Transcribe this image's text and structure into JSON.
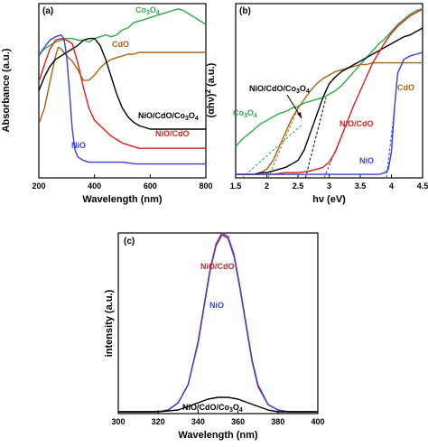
{
  "colors": {
    "Co3O4": "#2eaa4a",
    "CdO": "#a86412",
    "NiO/CdO/Co3O4": "#000000",
    "NiO/CdO": "#dd1e1e",
    "NiO": "#3a3fd8"
  },
  "chart_data": [
    {
      "id": "a",
      "panel_label": "(a)",
      "type": "line",
      "xlabel": "Wavelength (nm)",
      "ylabel": "Absorbance (a.u.)",
      "xlim": [
        200,
        800
      ],
      "xticks": [
        "200",
        "400",
        "600",
        "800"
      ],
      "y_ticks_labeled": false,
      "grid": false,
      "series_labels": [
        {
          "series": "Co3O4",
          "base": "Co",
          "sub1": "3",
          "mid": "O",
          "sub2": "4",
          "tail": ""
        },
        {
          "series": "CdO",
          "base": "CdO",
          "sub1": "",
          "mid": "",
          "sub2": "",
          "tail": ""
        },
        {
          "series": "NiO/CdO/Co3O4",
          "base": "NiO/CdO/Co",
          "sub1": "3",
          "mid": "O",
          "sub2": "4",
          "tail": ""
        },
        {
          "series": "NiO/CdO",
          "base": "NiO/CdO",
          "sub1": "",
          "mid": "",
          "sub2": "",
          "tail": ""
        },
        {
          "series": "NiO",
          "base": "NiO",
          "sub1": "",
          "mid": "",
          "sub2": "",
          "tail": ""
        }
      ],
      "series": [
        {
          "name": "Co3O4",
          "x": [
            200,
            220,
            240,
            260,
            280,
            300,
            320,
            340,
            360,
            380,
            400,
            420,
            440,
            460,
            480,
            500,
            520,
            540,
            560,
            580,
            600,
            620,
            640,
            660,
            680,
            700,
            720,
            740,
            760,
            780,
            800
          ],
          "values": [
            0.71,
            0.74,
            0.76,
            0.78,
            0.79,
            0.8,
            0.8,
            0.79,
            0.79,
            0.78,
            0.8,
            0.81,
            0.82,
            0.81,
            0.82,
            0.85,
            0.86,
            0.89,
            0.9,
            0.91,
            0.92,
            0.93,
            0.94,
            0.95,
            0.96,
            0.97,
            0.96,
            0.94,
            0.92,
            0.9,
            0.88
          ]
        },
        {
          "name": "CdO",
          "x": [
            200,
            220,
            240,
            260,
            270,
            280,
            300,
            320,
            340,
            360,
            380,
            400,
            420,
            440,
            460,
            480,
            500,
            520,
            540,
            560,
            580,
            600,
            620,
            640,
            660,
            680,
            700,
            720,
            740,
            760,
            780,
            800
          ],
          "values": [
            0.31,
            0.4,
            0.55,
            0.7,
            0.75,
            0.74,
            0.7,
            0.67,
            0.62,
            0.56,
            0.56,
            0.59,
            0.63,
            0.66,
            0.68,
            0.69,
            0.7,
            0.71,
            0.71,
            0.72,
            0.72,
            0.72,
            0.72,
            0.72,
            0.72,
            0.72,
            0.72,
            0.72,
            0.72,
            0.72,
            0.72,
            0.72
          ]
        },
        {
          "name": "NiO/CdO/Co3O4",
          "x": [
            200,
            220,
            240,
            260,
            280,
            300,
            320,
            340,
            360,
            380,
            400,
            420,
            440,
            460,
            480,
            500,
            520,
            540,
            560,
            580,
            600,
            650,
            700,
            750,
            800
          ],
          "values": [
            0.5,
            0.58,
            0.64,
            0.68,
            0.7,
            0.72,
            0.74,
            0.76,
            0.79,
            0.8,
            0.8,
            0.76,
            0.68,
            0.58,
            0.48,
            0.4,
            0.35,
            0.32,
            0.3,
            0.29,
            0.28,
            0.28,
            0.28,
            0.28,
            0.28
          ]
        },
        {
          "name": "NiO/CdO",
          "x": [
            200,
            220,
            240,
            260,
            280,
            300,
            320,
            340,
            360,
            380,
            400,
            420,
            440,
            460,
            480,
            500,
            520,
            540,
            560,
            580,
            600,
            650,
            700,
            750,
            800
          ],
          "values": [
            0.55,
            0.65,
            0.74,
            0.79,
            0.8,
            0.79,
            0.77,
            0.66,
            0.52,
            0.4,
            0.33,
            0.3,
            0.27,
            0.24,
            0.22,
            0.2,
            0.19,
            0.18,
            0.17,
            0.17,
            0.17,
            0.17,
            0.17,
            0.17,
            0.17
          ]
        },
        {
          "name": "NiO",
          "x": [
            200,
            220,
            240,
            260,
            280,
            290,
            300,
            310,
            320,
            330,
            340,
            360,
            380,
            400,
            450,
            500,
            550,
            600,
            650,
            700,
            750,
            800
          ],
          "values": [
            0.7,
            0.75,
            0.79,
            0.81,
            0.82,
            0.8,
            0.7,
            0.5,
            0.28,
            0.16,
            0.12,
            0.1,
            0.09,
            0.09,
            0.09,
            0.09,
            0.08,
            0.08,
            0.08,
            0.08,
            0.08,
            0.08
          ]
        }
      ]
    },
    {
      "id": "b",
      "panel_label": "(b)",
      "type": "line",
      "xlabel": "hν (eV)",
      "ylabel_base": "(αhν)",
      "ylabel_sup": "2",
      "ylabel_unit": " (a.u.)",
      "xlim": [
        1.5,
        4.5
      ],
      "xticks": [
        "1.5",
        "2",
        "2.5",
        "3",
        "3.5",
        "4",
        "4.5"
      ],
      "y_ticks_labeled": false,
      "grid": false,
      "series_labels": [
        {
          "series": "NiO/CdO/Co3O4",
          "base": "NiO/CdO/Co",
          "sub1": "3",
          "mid": "O",
          "sub2": "4",
          "tail": ""
        },
        {
          "series": "Co3O4",
          "base": "Co",
          "sub1": "3",
          "mid": "O",
          "sub2": "4",
          "tail": ""
        },
        {
          "series": "NiO/CdO",
          "base": "NiO/CdO",
          "sub1": "",
          "mid": "",
          "sub2": "",
          "tail": ""
        },
        {
          "series": "CdO",
          "base": "CdO",
          "sub1": "",
          "mid": "",
          "sub2": "",
          "tail": ""
        },
        {
          "series": "NiO",
          "base": "NiO",
          "sub1": "",
          "mid": "",
          "sub2": "",
          "tail": ""
        }
      ],
      "series": [
        {
          "name": "Co3O4",
          "x": [
            1.5,
            1.6,
            1.7,
            1.8,
            1.9,
            2.0,
            2.1,
            2.2,
            2.3,
            2.4,
            2.5,
            2.6,
            2.7,
            2.8,
            2.9,
            3.0,
            3.1,
            3.2,
            3.3,
            3.4,
            3.5,
            3.6,
            3.7,
            3.8,
            3.9,
            4.0,
            4.1,
            4.2,
            4.3,
            4.4,
            4.5
          ],
          "values": [
            0.18,
            0.22,
            0.25,
            0.28,
            0.31,
            0.33,
            0.35,
            0.37,
            0.38,
            0.4,
            0.41,
            0.43,
            0.44,
            0.45,
            0.46,
            0.48,
            0.5,
            0.53,
            0.57,
            0.61,
            0.65,
            0.69,
            0.73,
            0.77,
            0.8,
            0.84,
            0.88,
            0.91,
            0.94,
            0.96,
            0.97
          ]
        },
        {
          "name": "CdO",
          "x": [
            1.5,
            1.6,
            1.7,
            1.8,
            1.9,
            2.0,
            2.1,
            2.2,
            2.3,
            2.4,
            2.5,
            2.6,
            2.7,
            2.8,
            2.9,
            3.0,
            3.1,
            3.2,
            3.3,
            3.4,
            3.5,
            3.6,
            3.7,
            3.8,
            3.9,
            4.0,
            4.1,
            4.2,
            4.3,
            4.4,
            4.5
          ],
          "values": [
            0.02,
            0.02,
            0.02,
            0.02,
            0.03,
            0.05,
            0.1,
            0.18,
            0.26,
            0.34,
            0.4,
            0.45,
            0.5,
            0.54,
            0.57,
            0.59,
            0.61,
            0.62,
            0.63,
            0.64,
            0.65,
            0.65,
            0.66,
            0.66,
            0.66,
            0.66,
            0.66,
            0.66,
            0.66,
            0.66,
            0.66
          ]
        },
        {
          "name": "NiO/CdO/Co3O4",
          "x": [
            1.5,
            1.6,
            1.7,
            1.8,
            1.9,
            2.0,
            2.1,
            2.2,
            2.3,
            2.4,
            2.5,
            2.6,
            2.7,
            2.8,
            2.9,
            3.0,
            3.1,
            3.2,
            3.3,
            3.4,
            3.5,
            3.6,
            3.7,
            3.8,
            3.9,
            4.0,
            4.1,
            4.2,
            4.3,
            4.4,
            4.5
          ],
          "values": [
            0.02,
            0.02,
            0.02,
            0.02,
            0.03,
            0.03,
            0.04,
            0.05,
            0.06,
            0.08,
            0.1,
            0.16,
            0.26,
            0.36,
            0.46,
            0.54,
            0.58,
            0.61,
            0.63,
            0.65,
            0.67,
            0.69,
            0.71,
            0.73,
            0.75,
            0.77,
            0.79,
            0.81,
            0.82,
            0.84,
            0.86
          ]
        },
        {
          "name": "NiO/CdO",
          "x": [
            1.5,
            1.7,
            1.9,
            2.1,
            2.3,
            2.5,
            2.7,
            2.9,
            3.0,
            3.1,
            3.2,
            3.3,
            3.4,
            3.5,
            3.6,
            3.7,
            3.8,
            3.9,
            4.0,
            4.1,
            4.2,
            4.3,
            4.4,
            4.5
          ],
          "values": [
            0.02,
            0.02,
            0.02,
            0.02,
            0.03,
            0.03,
            0.04,
            0.06,
            0.09,
            0.15,
            0.24,
            0.33,
            0.42,
            0.5,
            0.58,
            0.66,
            0.72,
            0.78,
            0.83,
            0.87,
            0.9,
            0.93,
            0.95,
            0.97
          ]
        },
        {
          "name": "NiO",
          "x": [
            1.5,
            2.0,
            2.5,
            3.0,
            3.5,
            3.8,
            3.9,
            3.95,
            4.0,
            4.05,
            4.1,
            4.2,
            4.3,
            4.4,
            4.5
          ],
          "values": [
            0.02,
            0.02,
            0.02,
            0.02,
            0.02,
            0.02,
            0.03,
            0.05,
            0.15,
            0.4,
            0.6,
            0.68,
            0.7,
            0.71,
            0.72
          ]
        }
      ]
    },
    {
      "id": "c",
      "panel_label": "(c)",
      "type": "line",
      "xlabel": "Wavelength (nm)",
      "ylabel": "intensity (a.u.)",
      "xlim": [
        300,
        400
      ],
      "xticks": [
        "300",
        "320",
        "340",
        "360",
        "380",
        "400"
      ],
      "y_ticks_labeled": false,
      "grid": false,
      "series_labels": [
        {
          "series": "NiO/CdO",
          "base": "NiO/CdO",
          "sub1": "",
          "mid": "",
          "sub2": "",
          "tail": ""
        },
        {
          "series": "NiO",
          "base": "NiO",
          "sub1": "",
          "mid": "",
          "sub2": "",
          "tail": ""
        },
        {
          "series": "NiO/CdO/Co3O4",
          "base": "NiO/CdO/Co",
          "sub1": "3",
          "mid": "O",
          "sub2": "4",
          "tail": ""
        }
      ],
      "series": [
        {
          "name": "NiO/CdO",
          "x": [
            300,
            310,
            320,
            325,
            330,
            335,
            340,
            343,
            346,
            349,
            352,
            355,
            358,
            361,
            364,
            367,
            370,
            375,
            380,
            385,
            390,
            400
          ],
          "values": [
            0.01,
            0.01,
            0.01,
            0.02,
            0.06,
            0.16,
            0.4,
            0.6,
            0.8,
            0.94,
            1.0,
            0.98,
            0.88,
            0.7,
            0.5,
            0.3,
            0.16,
            0.05,
            0.02,
            0.01,
            0.01,
            0.01
          ]
        },
        {
          "name": "NiO",
          "x": [
            300,
            310,
            320,
            325,
            330,
            335,
            340,
            343,
            346,
            349,
            352,
            355,
            358,
            361,
            364,
            367,
            370,
            375,
            380,
            385,
            390,
            400
          ],
          "values": [
            0.01,
            0.01,
            0.01,
            0.02,
            0.06,
            0.16,
            0.39,
            0.59,
            0.79,
            0.93,
            0.99,
            0.97,
            0.87,
            0.69,
            0.49,
            0.29,
            0.15,
            0.05,
            0.02,
            0.01,
            0.01,
            0.01
          ]
        },
        {
          "name": "NiO/CdO/Co3O4",
          "x": [
            300,
            310,
            320,
            330,
            335,
            340,
            345,
            350,
            355,
            360,
            365,
            370,
            375,
            380,
            390,
            400
          ],
          "values": [
            0.01,
            0.01,
            0.01,
            0.02,
            0.04,
            0.06,
            0.08,
            0.09,
            0.09,
            0.08,
            0.06,
            0.04,
            0.02,
            0.01,
            0.01,
            0.01
          ]
        }
      ]
    }
  ]
}
